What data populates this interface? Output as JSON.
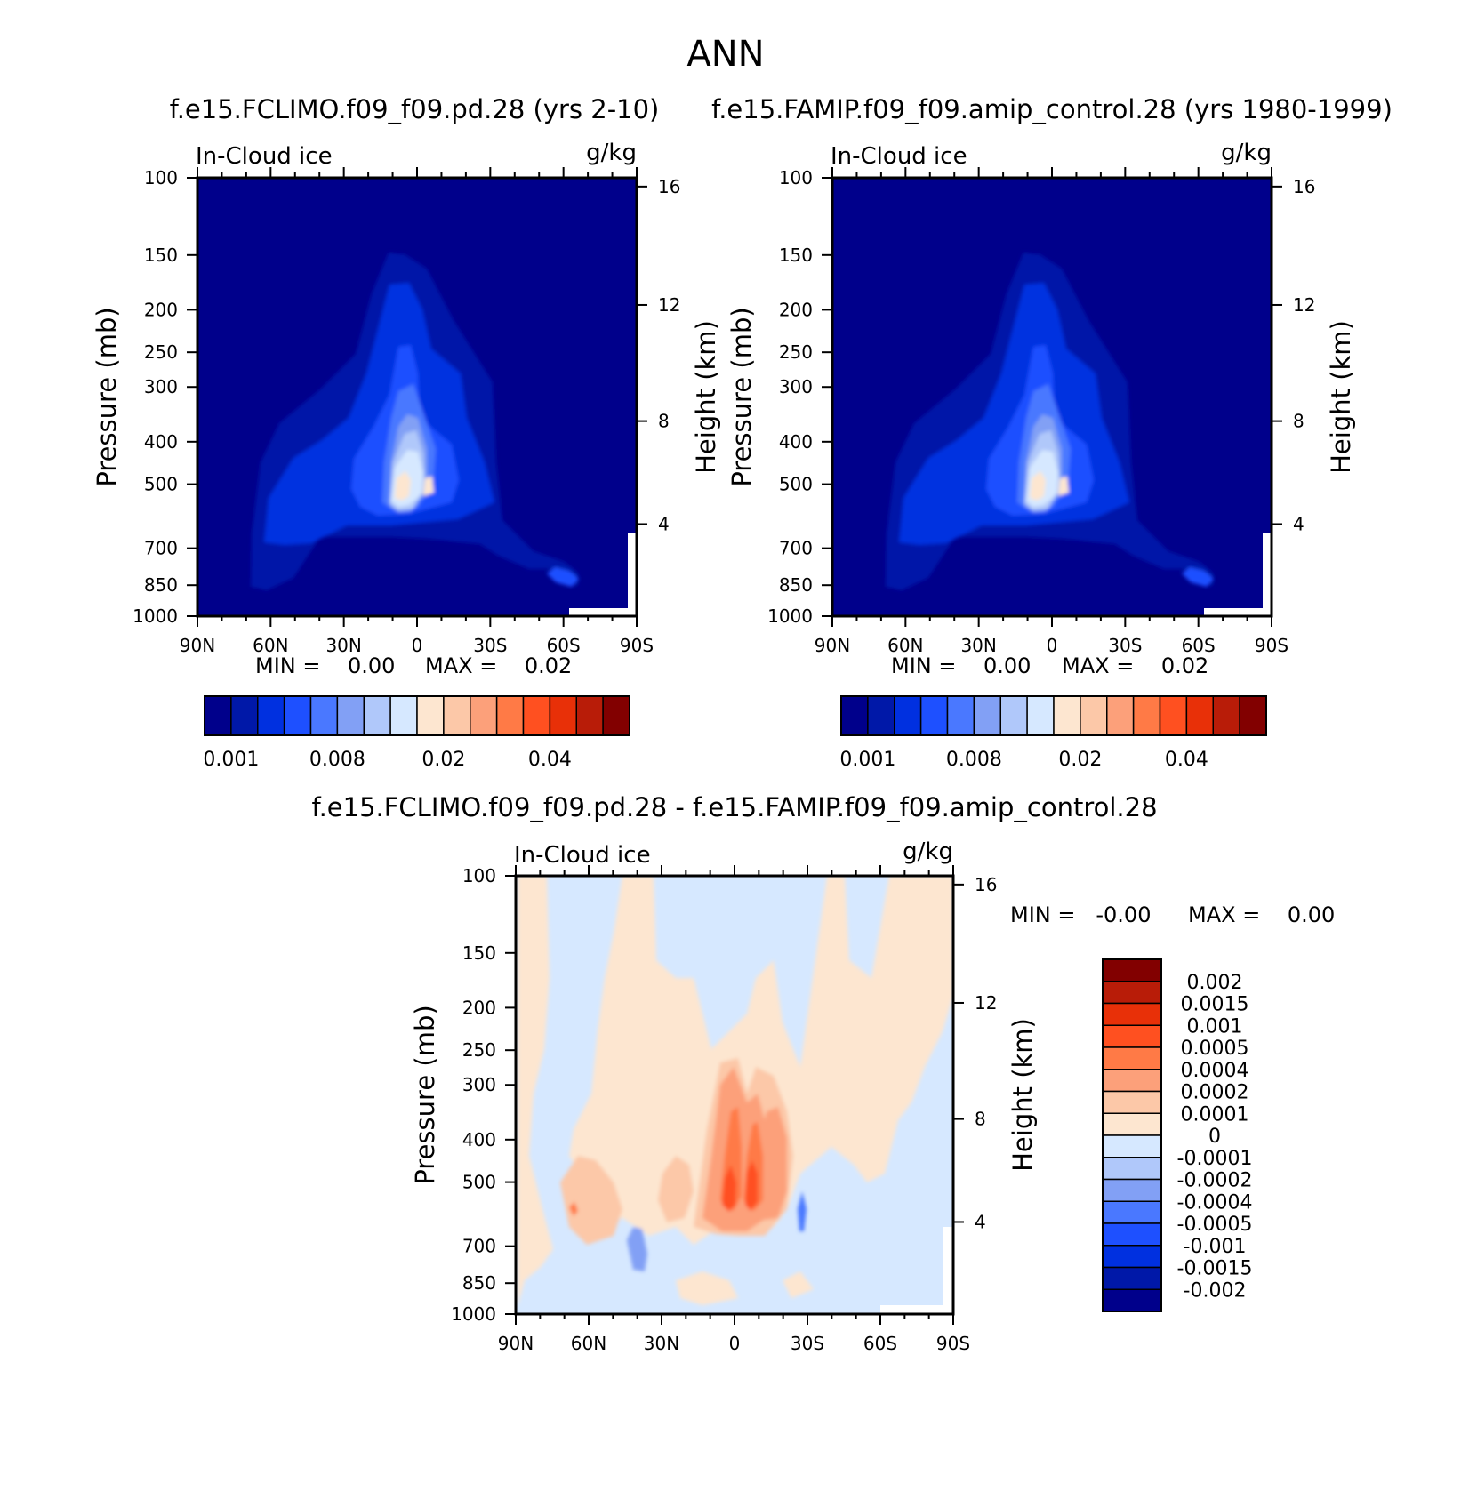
{
  "page": {
    "title": "ANN"
  },
  "colors": {
    "abs_palette": [
      "#00008b",
      "#0018a8",
      "#0030e0",
      "#1e50ff",
      "#4a78ff",
      "#82a0f5",
      "#b0c8fa",
      "#d6e8ff",
      "#fde6d0",
      "#fcc8a8",
      "#fca07a",
      "#ff7a46",
      "#ff5020",
      "#e83008",
      "#b81c08",
      "#820000"
    ],
    "diff_palette": [
      "#00008b",
      "#0018a8",
      "#0030e0",
      "#1e50ff",
      "#4a78ff",
      "#82a0f5",
      "#b0c8fa",
      "#d6e8ff",
      "#fde6d0",
      "#fcc8a8",
      "#fca07a",
      "#ff7a46",
      "#ff5020",
      "#e83008",
      "#b81c08",
      "#820000"
    ],
    "diff_background": "#d6e8ff",
    "abs_background": "#00008b"
  },
  "chart_data": [
    {
      "id": "panel1",
      "type": "heatmap",
      "title": "f.e15.FCLIMO.f09_f09.pd.28 (yrs 2-10)",
      "left_label": "In-Cloud ice",
      "right_label": "g/kg",
      "xlabel": "",
      "ylabel": "Pressure (mb)",
      "y2label": "Height (km)",
      "x_ticks": [
        "90N",
        "60N",
        "30N",
        "0",
        "30S",
        "60S",
        "90S"
      ],
      "x_values": [
        90,
        60,
        30,
        0,
        -30,
        -60,
        -90
      ],
      "y_ticks": [
        100,
        150,
        200,
        250,
        300,
        400,
        500,
        700,
        850,
        1000
      ],
      "y2_ticks": [
        16,
        12,
        8,
        4
      ],
      "ylim": [
        1000,
        100
      ],
      "y_scale": "log",
      "min_text": "MIN =    0.00",
      "max_text": "MAX =    0.02",
      "colorbar_labels": [
        "0.001",
        "0.008",
        "0.02",
        "0.04"
      ],
      "data_min": 0.0,
      "data_max": 0.02
    },
    {
      "id": "panel2",
      "type": "heatmap",
      "title": "f.e15.FAMIP.f09_f09.amip_control.28 (yrs 1980-1999)",
      "left_label": "In-Cloud ice",
      "right_label": "g/kg",
      "xlabel": "",
      "ylabel": "Pressure (mb)",
      "y2label": "Height (km)",
      "x_ticks": [
        "90N",
        "60N",
        "30N",
        "0",
        "30S",
        "60S",
        "90S"
      ],
      "x_values": [
        90,
        60,
        30,
        0,
        -30,
        -60,
        -90
      ],
      "y_ticks": [
        100,
        150,
        200,
        250,
        300,
        400,
        500,
        700,
        850,
        1000
      ],
      "y2_ticks": [
        16,
        12,
        8,
        4
      ],
      "ylim": [
        1000,
        100
      ],
      "y_scale": "log",
      "min_text": "MIN =    0.00",
      "max_text": "MAX =    0.02",
      "colorbar_labels": [
        "0.001",
        "0.008",
        "0.02",
        "0.04"
      ],
      "data_min": 0.0,
      "data_max": 0.02
    },
    {
      "id": "panel3",
      "type": "heatmap",
      "title": "f.e15.FCLIMO.f09_f09.pd.28 - f.e15.FAMIP.f09_f09.amip_control.28",
      "left_label": "In-Cloud ice",
      "right_label": "g/kg",
      "xlabel": "",
      "ylabel": "Pressure (mb)",
      "y2label": "Height (km)",
      "x_ticks": [
        "90N",
        "60N",
        "30N",
        "0",
        "30S",
        "60S",
        "90S"
      ],
      "x_values": [
        90,
        60,
        30,
        0,
        -30,
        -60,
        -90
      ],
      "y_ticks": [
        100,
        150,
        200,
        250,
        300,
        400,
        500,
        700,
        850,
        1000
      ],
      "y2_ticks": [
        16,
        12,
        8,
        4
      ],
      "ylim": [
        1000,
        100
      ],
      "y_scale": "log",
      "min_text": "MIN =   -0.00",
      "max_text": "MAX =    0.00",
      "colorbar_labels": [
        "0.002",
        "0.0015",
        "0.001",
        "0.0005",
        "0.0004",
        "0.0002",
        "0.0001",
        "0",
        "-0.0001",
        "-0.0002",
        "-0.0004",
        "-0.0005",
        "-0.001",
        "-0.0015",
        "-0.002"
      ],
      "data_min": -0.0,
      "data_max": 0.0
    }
  ]
}
